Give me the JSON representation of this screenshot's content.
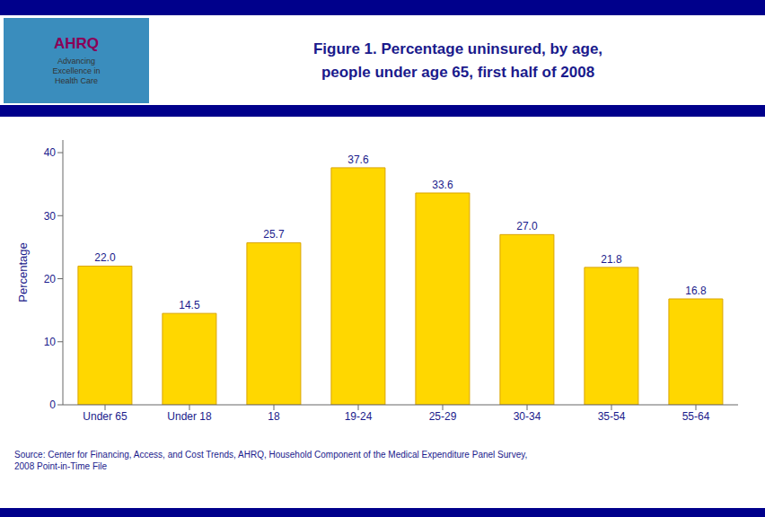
{
  "chart_data": {
    "type": "bar",
    "title": "Figure 1. Percentage uninsured, by age,\npeople under age 65, first half of 2008",
    "ylabel": "Percentage",
    "categories": [
      "Under 65",
      "Under 18",
      "18",
      "19-24",
      "25-29",
      "30-34",
      "35-54",
      "55-64"
    ],
    "values": [
      22.0,
      14.5,
      25.7,
      37.6,
      33.6,
      27.0,
      21.8,
      16.8
    ],
    "value_labels": [
      "22.0",
      "14.5",
      "25.7",
      "37.6",
      "33.6",
      "27.0",
      "21.8",
      "16.8"
    ],
    "data_labels": true,
    "color": "#FFD700",
    "ylim": [
      0,
      42
    ],
    "yticks": [
      0,
      10,
      20,
      30,
      40
    ],
    "grid": false,
    "annotations": [
      "AHRQ",
      "Advancing\nExcellence in\nHealth Care",
      "Source: Center for Financing, Access, and Cost Trends, AHRQ, Household Component of the Medical Expenditure Panel Survey,\n2008 Point-in-Time File"
    ]
  }
}
